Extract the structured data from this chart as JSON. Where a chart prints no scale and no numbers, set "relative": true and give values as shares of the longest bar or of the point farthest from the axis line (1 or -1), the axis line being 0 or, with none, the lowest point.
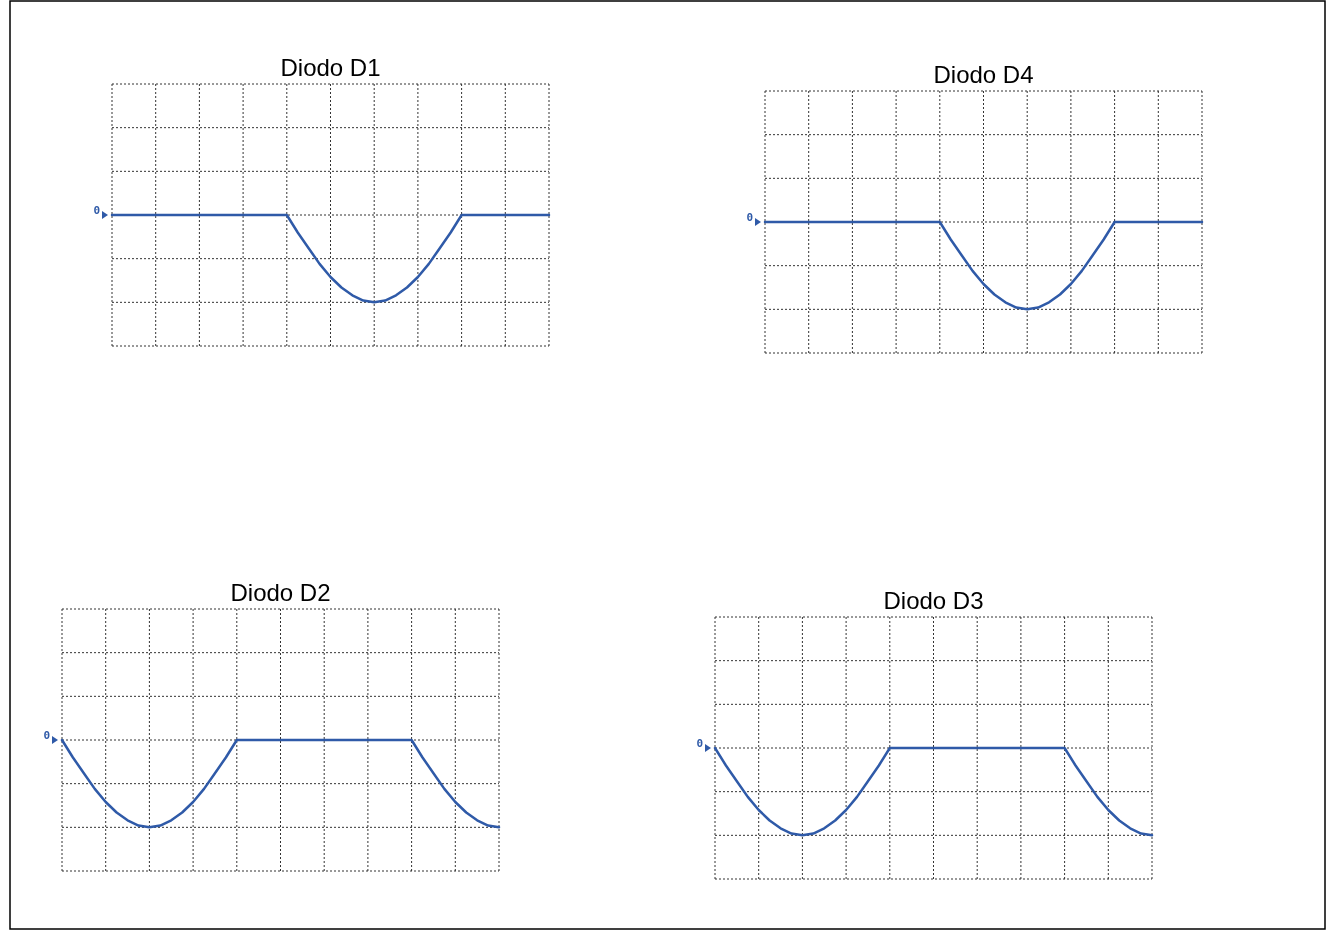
{
  "chart_data": [
    {
      "type": "line",
      "title": "Diodo D1",
      "relative": true,
      "categories": [
        null,
        null,
        null,
        null,
        null,
        null,
        null,
        null,
        null,
        null,
        null,
        null,
        null,
        null,
        null,
        null,
        null,
        null,
        null,
        null,
        null,
        null,
        null,
        null,
        null,
        null,
        null,
        null,
        null,
        null,
        null,
        null,
        null,
        null,
        null,
        null,
        null,
        null,
        null,
        null,
        null
      ],
      "grid": true,
      "marker": "none",
      "line_style": "solid",
      "annotations": [
        "0"
      ],
      "series": [
        {
          "color": "#2f5aa8",
          "values": [
            0,
            0,
            0,
            0,
            0,
            0,
            0,
            0,
            0,
            0,
            0,
            0,
            0,
            0,
            0,
            0,
            0,
            -0.2,
            -0.38,
            -0.56,
            -0.71,
            -0.83,
            -0.92,
            -0.98,
            -1,
            -0.98,
            -0.92,
            -0.83,
            -0.71,
            -0.56,
            -0.38,
            -0.2,
            0,
            0,
            0,
            0,
            0,
            0,
            0,
            0,
            0
          ]
        }
      ]
    },
    {
      "type": "line",
      "title": "Diodo D4",
      "relative": true,
      "categories": [
        null,
        null,
        null,
        null,
        null,
        null,
        null,
        null,
        null,
        null,
        null,
        null,
        null,
        null,
        null,
        null,
        null,
        null,
        null,
        null,
        null,
        null,
        null,
        null,
        null,
        null,
        null,
        null,
        null,
        null,
        null,
        null,
        null,
        null,
        null,
        null,
        null,
        null,
        null,
        null,
        null
      ],
      "grid": true,
      "marker": "none",
      "line_style": "solid",
      "annotations": [
        "0"
      ],
      "series": [
        {
          "color": "#2f5aa8",
          "values": [
            0,
            0,
            0,
            0,
            0,
            0,
            0,
            0,
            0,
            0,
            0,
            0,
            0,
            0,
            0,
            0,
            0,
            -0.2,
            -0.38,
            -0.56,
            -0.71,
            -0.83,
            -0.92,
            -0.98,
            -1,
            -0.98,
            -0.92,
            -0.83,
            -0.71,
            -0.56,
            -0.38,
            -0.2,
            0,
            0,
            0,
            0,
            0,
            0,
            0,
            0,
            0
          ]
        }
      ]
    },
    {
      "type": "line",
      "title": "Diodo D2",
      "relative": true,
      "categories": [
        null,
        null,
        null,
        null,
        null,
        null,
        null,
        null,
        null,
        null,
        null,
        null,
        null,
        null,
        null,
        null,
        null,
        null,
        null,
        null,
        null,
        null,
        null,
        null,
        null,
        null,
        null,
        null,
        null,
        null,
        null,
        null,
        null,
        null,
        null,
        null,
        null,
        null,
        null,
        null,
        null
      ],
      "grid": true,
      "marker": "none",
      "line_style": "solid",
      "annotations": [
        "0"
      ],
      "series": [
        {
          "color": "#2f5aa8",
          "values": [
            0,
            -0.2,
            -0.38,
            -0.56,
            -0.71,
            -0.83,
            -0.92,
            -0.98,
            -1,
            -0.98,
            -0.92,
            -0.83,
            -0.71,
            -0.56,
            -0.38,
            -0.2,
            0,
            0,
            0,
            0,
            0,
            0,
            0,
            0,
            0,
            0,
            0,
            0,
            0,
            0,
            0,
            0,
            0,
            -0.2,
            -0.38,
            -0.56,
            -0.71,
            -0.83,
            -0.92,
            -0.98,
            -1
          ]
        }
      ]
    },
    {
      "type": "line",
      "title": "Diodo D3",
      "relative": true,
      "categories": [
        null,
        null,
        null,
        null,
        null,
        null,
        null,
        null,
        null,
        null,
        null,
        null,
        null,
        null,
        null,
        null,
        null,
        null,
        null,
        null,
        null,
        null,
        null,
        null,
        null,
        null,
        null,
        null,
        null,
        null,
        null,
        null,
        null,
        null,
        null,
        null,
        null,
        null,
        null,
        null,
        null
      ],
      "grid": true,
      "marker": "none",
      "line_style": "solid",
      "annotations": [
        "0"
      ],
      "series": [
        {
          "color": "#2f5aa8",
          "values": [
            0,
            -0.2,
            -0.38,
            -0.56,
            -0.71,
            -0.83,
            -0.92,
            -0.98,
            -1,
            -0.98,
            -0.92,
            -0.83,
            -0.71,
            -0.56,
            -0.38,
            -0.2,
            0,
            0,
            0,
            0,
            0,
            0,
            0,
            0,
            0,
            0,
            0,
            0,
            0,
            0,
            0,
            0,
            0,
            -0.2,
            -0.38,
            -0.56,
            -0.71,
            -0.83,
            -0.92,
            -0.98,
            -1
          ]
        }
      ]
    }
  ]
}
